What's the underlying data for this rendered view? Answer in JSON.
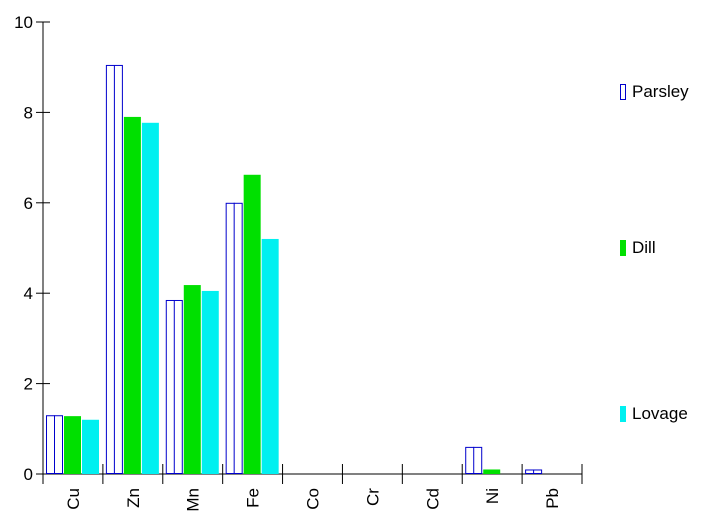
{
  "chart_data": {
    "type": "bar",
    "categories": [
      "Cu",
      "Zn",
      "Mn",
      "Fe",
      "Co",
      "Cr",
      "Cd",
      "Ni",
      "Pb"
    ],
    "series": [
      {
        "name": "Parsley",
        "color": "#0000cc",
        "style": "outline",
        "values": [
          1.3,
          9.05,
          3.85,
          6.0,
          0,
          0,
          0,
          0.6,
          0.1
        ]
      },
      {
        "name": "Dill",
        "color": "#00e000",
        "style": "filled",
        "values": [
          1.28,
          7.9,
          4.18,
          6.62,
          0,
          0,
          0,
          0.1,
          0
        ]
      },
      {
        "name": "Lovage",
        "color": "#00f0f0",
        "style": "filled",
        "values": [
          1.2,
          7.77,
          4.05,
          5.2,
          0,
          0,
          0,
          0,
          0
        ]
      }
    ],
    "ylim": [
      0,
      10
    ],
    "yticks": [
      "0",
      "2",
      "4",
      "6",
      "8",
      "10"
    ],
    "legend_position": "right",
    "grid": false
  }
}
